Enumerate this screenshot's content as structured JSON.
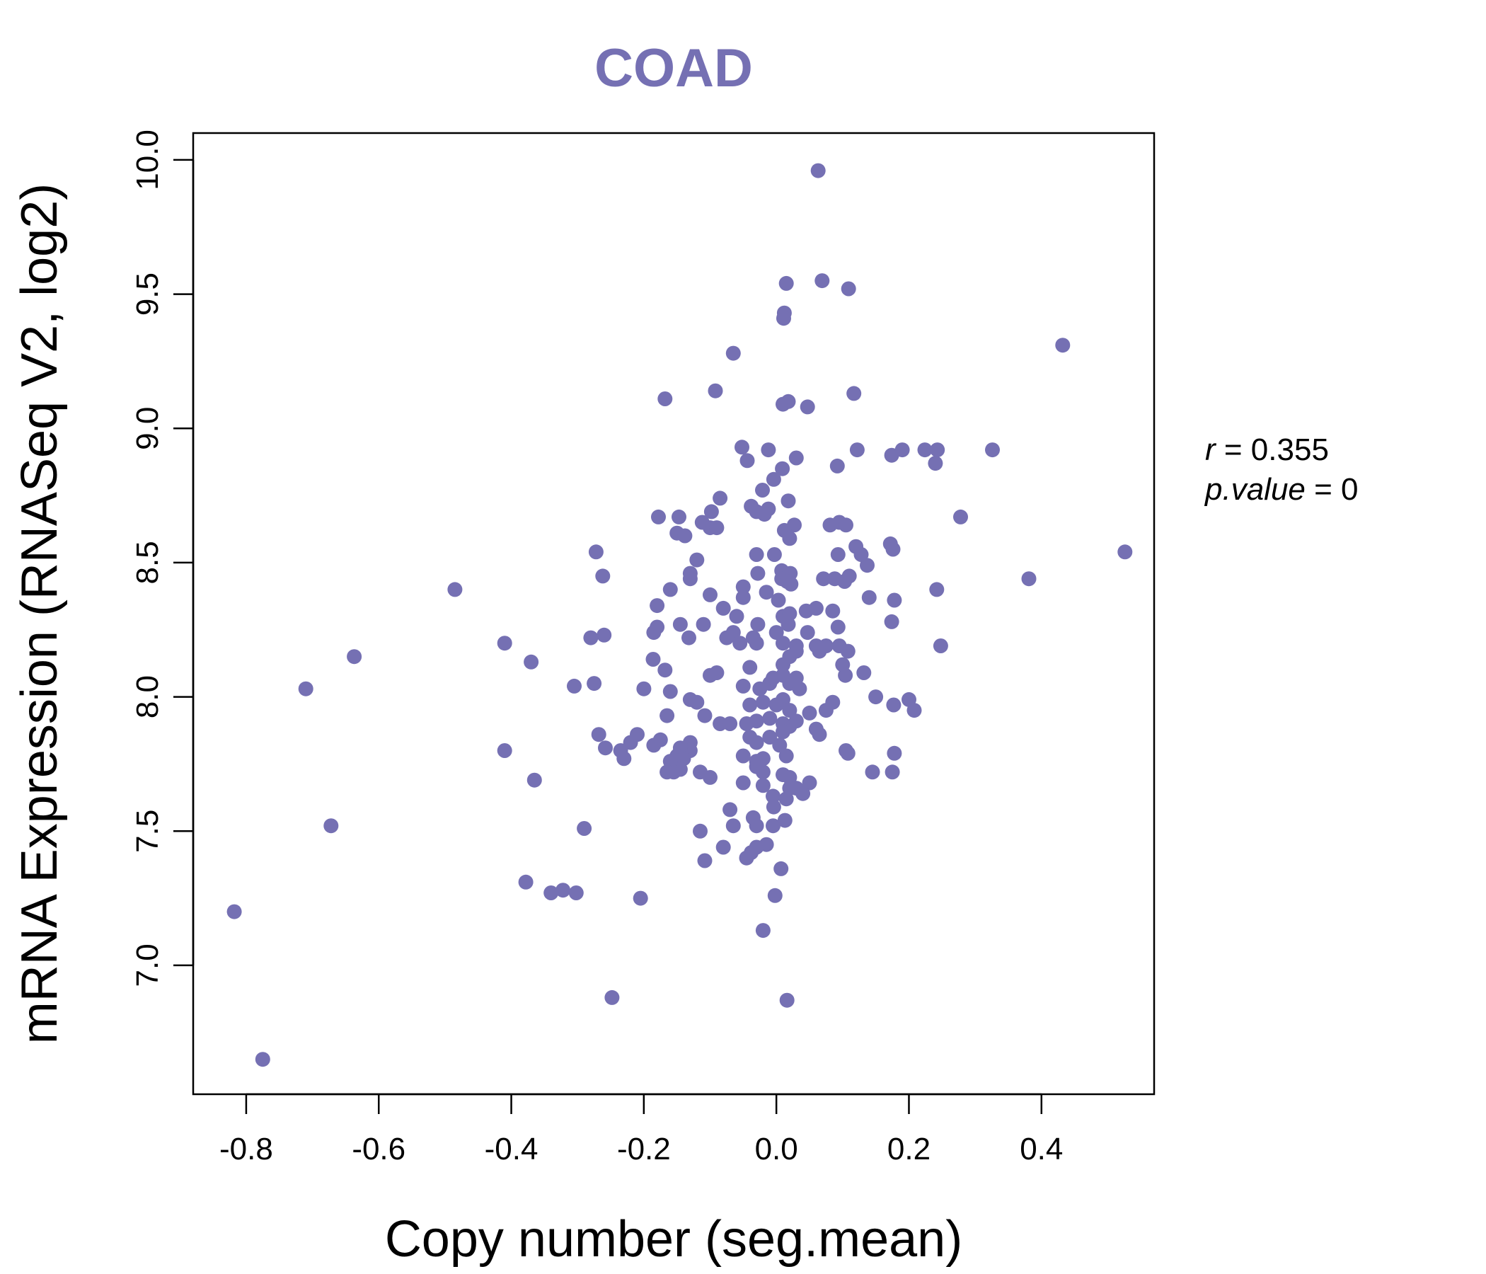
{
  "chart_data": {
    "type": "scatter",
    "title": "COAD",
    "xlabel": "Copy number (seg.mean)",
    "ylabel": "mRNA Expression (RNASeq V2, log2)",
    "xlim": [
      -0.88,
      0.57
    ],
    "ylim": [
      6.52,
      10.1
    ],
    "xticks": [
      -0.8,
      -0.6,
      -0.4,
      -0.2,
      0.0,
      0.2,
      0.4
    ],
    "xtick_labels": [
      "-0.8",
      "-0.6",
      "-0.4",
      "-0.2",
      "0.0",
      "0.2",
      "0.4"
    ],
    "yticks": [
      7.0,
      7.5,
      8.0,
      8.5,
      9.0,
      9.5,
      10.0
    ],
    "ytick_labels": [
      "7.0",
      "7.5",
      "8.0",
      "8.5",
      "9.0",
      "9.5",
      "10.0"
    ],
    "grid": false,
    "legend": "none",
    "annotation": {
      "r_label": "r",
      "r_text": " = 0.355",
      "p_label": "p.value",
      "p_text": " = 0"
    },
    "colors": {
      "points": "#7570b3",
      "title": "#7570b3",
      "axis": "#000000"
    },
    "series": [
      {
        "points": [
          [
            0.063,
            9.96
          ],
          [
            0.015,
            9.54
          ],
          [
            0.069,
            9.55
          ],
          [
            0.109,
            9.52
          ],
          [
            0.012,
            9.43
          ],
          [
            0.011,
            9.41
          ],
          [
            -0.065,
            9.28
          ],
          [
            0.432,
            9.31
          ],
          [
            -0.092,
            9.14
          ],
          [
            -0.168,
            9.11
          ],
          [
            0.018,
            9.1
          ],
          [
            0.01,
            9.09
          ],
          [
            0.047,
            9.08
          ],
          [
            0.117,
            9.13
          ],
          [
            -0.052,
            8.93
          ],
          [
            -0.012,
            8.92
          ],
          [
            0.03,
            8.89
          ],
          [
            -0.044,
            8.88
          ],
          [
            0.009,
            8.85
          ],
          [
            -0.004,
            8.81
          ],
          [
            0.092,
            8.86
          ],
          [
            0.122,
            8.92
          ],
          [
            0.174,
            8.9
          ],
          [
            0.19,
            8.92
          ],
          [
            0.224,
            8.92
          ],
          [
            0.243,
            8.92
          ],
          [
            0.24,
            8.87
          ],
          [
            0.326,
            8.92
          ],
          [
            -0.085,
            8.74
          ],
          [
            -0.021,
            8.77
          ],
          [
            0.018,
            8.73
          ],
          [
            -0.038,
            8.71
          ],
          [
            -0.012,
            8.7
          ],
          [
            -0.03,
            8.69
          ],
          [
            -0.018,
            8.68
          ],
          [
            -0.098,
            8.69
          ],
          [
            -0.178,
            8.67
          ],
          [
            -0.147,
            8.67
          ],
          [
            -0.112,
            8.65
          ],
          [
            0.027,
            8.64
          ],
          [
            0.012,
            8.62
          ],
          [
            0.081,
            8.64
          ],
          [
            0.095,
            8.65
          ],
          [
            0.105,
            8.64
          ],
          [
            0.278,
            8.67
          ],
          [
            -0.15,
            8.61
          ],
          [
            -0.138,
            8.6
          ],
          [
            -0.1,
            8.63
          ],
          [
            -0.09,
            8.63
          ],
          [
            0.02,
            8.59
          ],
          [
            0.12,
            8.56
          ],
          [
            0.172,
            8.57
          ],
          [
            0.176,
            8.55
          ],
          [
            -0.272,
            8.54
          ],
          [
            -0.12,
            8.51
          ],
          [
            -0.03,
            8.53
          ],
          [
            -0.003,
            8.53
          ],
          [
            0.093,
            8.53
          ],
          [
            0.128,
            8.53
          ],
          [
            0.137,
            8.49
          ],
          [
            0.526,
            8.54
          ],
          [
            -0.262,
            8.45
          ],
          [
            -0.13,
            8.46
          ],
          [
            -0.13,
            8.44
          ],
          [
            -0.028,
            8.46
          ],
          [
            0.008,
            8.47
          ],
          [
            0.021,
            8.46
          ],
          [
            0.008,
            8.44
          ],
          [
            0.016,
            8.43
          ],
          [
            0.071,
            8.44
          ],
          [
            0.088,
            8.44
          ],
          [
            0.103,
            8.43
          ],
          [
            0.11,
            8.45
          ],
          [
            0.381,
            8.44
          ],
          [
            -0.485,
            8.4
          ],
          [
            -0.16,
            8.4
          ],
          [
            -0.1,
            8.38
          ],
          [
            -0.05,
            8.41
          ],
          [
            -0.05,
            8.37
          ],
          [
            -0.015,
            8.39
          ],
          [
            0.003,
            8.36
          ],
          [
            0.022,
            8.42
          ],
          [
            0.14,
            8.37
          ],
          [
            0.178,
            8.36
          ],
          [
            0.242,
            8.4
          ],
          [
            -0.18,
            8.34
          ],
          [
            -0.08,
            8.33
          ],
          [
            -0.06,
            8.3
          ],
          [
            0.01,
            8.3
          ],
          [
            0.02,
            8.31
          ],
          [
            0.045,
            8.32
          ],
          [
            0.06,
            8.33
          ],
          [
            0.085,
            8.32
          ],
          [
            -0.145,
            8.27
          ],
          [
            -0.11,
            8.27
          ],
          [
            -0.065,
            8.24
          ],
          [
            -0.028,
            8.27
          ],
          [
            0.0,
            8.24
          ],
          [
            0.018,
            8.27
          ],
          [
            0.047,
            8.24
          ],
          [
            0.093,
            8.26
          ],
          [
            0.174,
            8.28
          ],
          [
            -0.26,
            8.23
          ],
          [
            -0.28,
            8.22
          ],
          [
            -0.18,
            8.26
          ],
          [
            -0.185,
            8.24
          ],
          [
            -0.132,
            8.22
          ],
          [
            -0.075,
            8.22
          ],
          [
            -0.055,
            8.2
          ],
          [
            -0.035,
            8.22
          ],
          [
            -0.03,
            8.2
          ],
          [
            0.01,
            8.2
          ],
          [
            0.03,
            8.19
          ],
          [
            0.06,
            8.19
          ],
          [
            0.065,
            8.17
          ],
          [
            0.075,
            8.19
          ],
          [
            0.095,
            8.19
          ],
          [
            0.108,
            8.17
          ],
          [
            0.248,
            8.19
          ],
          [
            -0.41,
            8.2
          ],
          [
            -0.637,
            8.15
          ],
          [
            -0.37,
            8.13
          ],
          [
            -0.186,
            8.14
          ],
          [
            -0.168,
            8.1
          ],
          [
            -0.1,
            8.08
          ],
          [
            -0.09,
            8.09
          ],
          [
            -0.04,
            8.11
          ],
          [
            0.01,
            8.12
          ],
          [
            0.02,
            8.15
          ],
          [
            0.03,
            8.17
          ],
          [
            0.1,
            8.12
          ],
          [
            0.104,
            8.08
          ],
          [
            0.132,
            8.09
          ],
          [
            -0.71,
            8.03
          ],
          [
            -0.305,
            8.04
          ],
          [
            -0.275,
            8.05
          ],
          [
            -0.2,
            8.03
          ],
          [
            -0.16,
            8.02
          ],
          [
            -0.05,
            8.04
          ],
          [
            -0.025,
            8.03
          ],
          [
            -0.01,
            8.05
          ],
          [
            -0.005,
            8.07
          ],
          [
            0.01,
            8.08
          ],
          [
            0.02,
            8.05
          ],
          [
            0.03,
            8.07
          ],
          [
            0.035,
            8.03
          ],
          [
            -0.13,
            7.99
          ],
          [
            -0.12,
            7.98
          ],
          [
            -0.04,
            7.97
          ],
          [
            -0.02,
            7.98
          ],
          [
            0.0,
            7.97
          ],
          [
            0.01,
            7.99
          ],
          [
            0.02,
            7.95
          ],
          [
            0.05,
            7.94
          ],
          [
            0.075,
            7.95
          ],
          [
            0.085,
            7.98
          ],
          [
            0.15,
            8.0
          ],
          [
            0.177,
            7.97
          ],
          [
            0.2,
            7.99
          ],
          [
            0.208,
            7.95
          ],
          [
            -0.165,
            7.93
          ],
          [
            -0.108,
            7.93
          ],
          [
            -0.085,
            7.9
          ],
          [
            -0.07,
            7.9
          ],
          [
            -0.045,
            7.9
          ],
          [
            -0.03,
            7.91
          ],
          [
            -0.01,
            7.92
          ],
          [
            0.01,
            7.9
          ],
          [
            0.02,
            7.89
          ],
          [
            0.03,
            7.91
          ],
          [
            0.06,
            7.88
          ],
          [
            0.065,
            7.86
          ],
          [
            -0.268,
            7.86
          ],
          [
            -0.22,
            7.83
          ],
          [
            -0.21,
            7.86
          ],
          [
            -0.185,
            7.82
          ],
          [
            -0.175,
            7.84
          ],
          [
            -0.13,
            7.83
          ],
          [
            -0.13,
            7.8
          ],
          [
            -0.145,
            7.81
          ],
          [
            -0.04,
            7.85
          ],
          [
            -0.03,
            7.83
          ],
          [
            -0.01,
            7.85
          ],
          [
            0.005,
            7.82
          ],
          [
            0.01,
            7.87
          ],
          [
            -0.41,
            7.8
          ],
          [
            -0.258,
            7.81
          ],
          [
            -0.235,
            7.8
          ],
          [
            -0.23,
            7.77
          ],
          [
            -0.15,
            7.78
          ],
          [
            -0.14,
            7.77
          ],
          [
            -0.05,
            7.78
          ],
          [
            -0.03,
            7.76
          ],
          [
            -0.02,
            7.77
          ],
          [
            0.015,
            7.78
          ],
          [
            0.105,
            7.8
          ],
          [
            0.108,
            7.79
          ],
          [
            0.178,
            7.79
          ],
          [
            -0.16,
            7.76
          ],
          [
            -0.145,
            7.73
          ],
          [
            -0.155,
            7.72
          ],
          [
            -0.165,
            7.72
          ],
          [
            -0.115,
            7.72
          ],
          [
            -0.1,
            7.7
          ],
          [
            -0.03,
            7.74
          ],
          [
            -0.02,
            7.72
          ],
          [
            0.01,
            7.71
          ],
          [
            0.02,
            7.7
          ],
          [
            0.145,
            7.72
          ],
          [
            0.175,
            7.72
          ],
          [
            -0.365,
            7.69
          ],
          [
            -0.05,
            7.68
          ],
          [
            -0.02,
            7.67
          ],
          [
            0.02,
            7.66
          ],
          [
            0.03,
            7.66
          ],
          [
            0.05,
            7.68
          ],
          [
            0.04,
            7.64
          ],
          [
            -0.005,
            7.63
          ],
          [
            0.015,
            7.62
          ],
          [
            -0.07,
            7.58
          ],
          [
            -0.004,
            7.59
          ],
          [
            -0.672,
            7.52
          ],
          [
            -0.29,
            7.51
          ],
          [
            -0.115,
            7.5
          ],
          [
            -0.065,
            7.52
          ],
          [
            -0.035,
            7.55
          ],
          [
            -0.03,
            7.52
          ],
          [
            -0.005,
            7.52
          ],
          [
            0.013,
            7.54
          ],
          [
            -0.08,
            7.44
          ],
          [
            -0.045,
            7.4
          ],
          [
            -0.038,
            7.42
          ],
          [
            -0.03,
            7.44
          ],
          [
            -0.015,
            7.45
          ],
          [
            -0.108,
            7.39
          ],
          [
            0.007,
            7.36
          ],
          [
            -0.378,
            7.31
          ],
          [
            -0.322,
            7.28
          ],
          [
            -0.34,
            7.27
          ],
          [
            -0.302,
            7.27
          ],
          [
            -0.205,
            7.25
          ],
          [
            -0.002,
            7.26
          ],
          [
            -0.818,
            7.2
          ],
          [
            -0.02,
            7.13
          ],
          [
            -0.248,
            6.88
          ],
          [
            0.016,
            6.87
          ],
          [
            -0.775,
            6.65
          ]
        ]
      }
    ]
  }
}
